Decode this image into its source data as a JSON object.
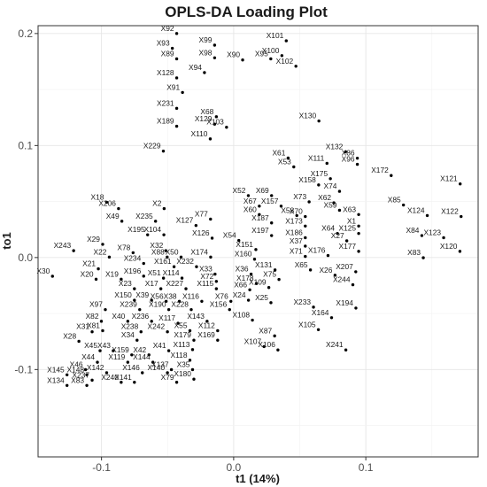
{
  "chart_data": {
    "type": "scatter",
    "title": "OPLS-DA Loading Plot",
    "xlabel": "t1 (14%)",
    "ylabel": "to1",
    "xlim": [
      -0.148,
      0.185
    ],
    "ylim": [
      -0.178,
      0.207
    ],
    "x_ticks": [
      {
        "value": -0.1,
        "label": "-0.1"
      },
      {
        "value": 0.0,
        "label": "0.0"
      },
      {
        "value": 0.1,
        "label": "0.1"
      }
    ],
    "y_ticks": [
      {
        "value": -0.1,
        "label": "-0.1"
      },
      {
        "value": 0.0,
        "label": "0.0"
      },
      {
        "value": 0.1,
        "label": "0.1"
      },
      {
        "value": 0.2,
        "label": "0.2"
      }
    ],
    "grid": true,
    "legend": "none",
    "point_color": "#000000",
    "points": [
      {
        "label": "X101",
        "x": 0.0398,
        "y": 0.1935
      },
      {
        "label": "X100",
        "x": 0.0365,
        "y": 0.1803
      },
      {
        "label": "X92",
        "x": -0.0431,
        "y": 0.2
      },
      {
        "label": "X93",
        "x": -0.0464,
        "y": 0.1868
      },
      {
        "label": "X99",
        "x": -0.0144,
        "y": 0.1896
      },
      {
        "label": "X89",
        "x": -0.0431,
        "y": 0.1774
      },
      {
        "label": "X98",
        "x": -0.0144,
        "y": 0.1783
      },
      {
        "label": "X90",
        "x": 0.0068,
        "y": 0.1764
      },
      {
        "label": "X95",
        "x": 0.0281,
        "y": 0.1774
      },
      {
        "label": "X102",
        "x": 0.0471,
        "y": 0.1708
      },
      {
        "label": "X94",
        "x": -0.0221,
        "y": 0.1651
      },
      {
        "label": "X128",
        "x": -0.0431,
        "y": 0.1604
      },
      {
        "label": "X91",
        "x": -0.0387,
        "y": 0.1474
      },
      {
        "label": "X68",
        "x": -0.0131,
        "y": 0.1257
      },
      {
        "label": "X231",
        "x": -0.0431,
        "y": 0.1332
      },
      {
        "label": "X129",
        "x": -0.0144,
        "y": 0.1191
      },
      {
        "label": "X130",
        "x": 0.0645,
        "y": 0.1219
      },
      {
        "label": "X103",
        "x": -0.0054,
        "y": 0.1163
      },
      {
        "label": "X189",
        "x": -0.0431,
        "y": 0.1172
      },
      {
        "label": "X110",
        "x": -0.0177,
        "y": 0.1059
      },
      {
        "label": "X229",
        "x": -0.0532,
        "y": 0.095
      },
      {
        "label": "X61",
        "x": 0.0412,
        "y": 0.0889
      },
      {
        "label": "X132",
        "x": 0.0847,
        "y": 0.0944
      },
      {
        "label": "X86",
        "x": 0.0936,
        "y": 0.0887
      },
      {
        "label": "X53",
        "x": 0.0455,
        "y": 0.0809
      },
      {
        "label": "X111",
        "x": 0.0706,
        "y": 0.0841
      },
      {
        "label": "X96",
        "x": 0.0936,
        "y": 0.0832
      },
      {
        "label": "X175",
        "x": 0.0732,
        "y": 0.0704
      },
      {
        "label": "X172",
        "x": 0.1192,
        "y": 0.0732
      },
      {
        "label": "X121",
        "x": 0.1714,
        "y": 0.0657
      },
      {
        "label": "X158",
        "x": 0.0643,
        "y": 0.0648
      },
      {
        "label": "X74",
        "x": 0.0801,
        "y": 0.0591
      },
      {
        "label": "X52",
        "x": 0.0111,
        "y": 0.0553
      },
      {
        "label": "X69",
        "x": 0.0287,
        "y": 0.0553
      },
      {
        "label": "X73",
        "x": 0.0571,
        "y": 0.0497
      },
      {
        "label": "X62",
        "x": 0.0758,
        "y": 0.0488
      },
      {
        "label": "X67",
        "x": 0.0194,
        "y": 0.0459
      },
      {
        "label": "X157",
        "x": 0.0359,
        "y": 0.0459
      },
      {
        "label": "X59",
        "x": 0.0801,
        "y": 0.0422
      },
      {
        "label": "X85",
        "x": 0.1285,
        "y": 0.0469
      },
      {
        "label": "X60",
        "x": 0.0194,
        "y": 0.0384
      },
      {
        "label": "X58",
        "x": 0.0478,
        "y": 0.0375
      },
      {
        "label": "X70",
        "x": 0.0542,
        "y": 0.0366
      },
      {
        "label": "X63",
        "x": 0.0946,
        "y": 0.0384
      },
      {
        "label": "X124",
        "x": 0.1465,
        "y": 0.0375
      },
      {
        "label": "X122",
        "x": 0.1721,
        "y": 0.0366
      },
      {
        "label": "X187",
        "x": 0.0287,
        "y": 0.0309
      },
      {
        "label": "X173",
        "x": 0.0542,
        "y": 0.0281
      },
      {
        "label": "X1",
        "x": 0.0946,
        "y": 0.0281
      },
      {
        "label": "X64",
        "x": 0.0785,
        "y": 0.0215
      },
      {
        "label": "X125",
        "x": 0.0946,
        "y": 0.0215
      },
      {
        "label": "X84",
        "x": 0.1424,
        "y": 0.0196
      },
      {
        "label": "X123",
        "x": 0.1589,
        "y": 0.0177
      },
      {
        "label": "X197",
        "x": 0.0287,
        "y": 0.0196
      },
      {
        "label": "X186",
        "x": 0.0542,
        "y": 0.0177
      },
      {
        "label": "X27",
        "x": 0.0856,
        "y": 0.0149
      },
      {
        "label": "X37",
        "x": 0.0542,
        "y": 0.0102
      },
      {
        "label": "X177",
        "x": 0.0946,
        "y": 0.0055
      },
      {
        "label": "X120",
        "x": 0.1712,
        "y": 0.0055
      },
      {
        "label": "X83",
        "x": 0.1435,
        "y": -0.0002
      },
      {
        "label": "X71",
        "x": 0.0542,
        "y": 0.001
      },
      {
        "label": "X176",
        "x": 0.0714,
        "y": 0.0018
      },
      {
        "label": "X65",
        "x": 0.0581,
        "y": -0.0111
      },
      {
        "label": "X131",
        "x": 0.0313,
        "y": -0.0111
      },
      {
        "label": "X75",
        "x": 0.0343,
        "y": -0.0196
      },
      {
        "label": "X26",
        "x": 0.0767,
        "y": -0.0158
      },
      {
        "label": "X207",
        "x": 0.0924,
        "y": -0.0127
      },
      {
        "label": "X244",
        "x": 0.0902,
        "y": -0.0243
      },
      {
        "label": "X109",
        "x": 0.0266,
        "y": -0.0268
      },
      {
        "label": "X25",
        "x": 0.0282,
        "y": -0.0403
      },
      {
        "label": "X233",
        "x": 0.0604,
        "y": -0.0443
      },
      {
        "label": "X194",
        "x": 0.0925,
        "y": -0.0451
      },
      {
        "label": "X164",
        "x": 0.0741,
        "y": -0.0537
      },
      {
        "label": "X105",
        "x": 0.0641,
        "y": -0.0644
      },
      {
        "label": "X87",
        "x": 0.031,
        "y": -0.07
      },
      {
        "label": "X107",
        "x": 0.023,
        "y": -0.0795
      },
      {
        "label": "X106",
        "x": 0.0335,
        "y": -0.0825
      },
      {
        "label": "X241",
        "x": 0.0849,
        "y": -0.0825
      },
      {
        "label": "X18",
        "x": -0.0961,
        "y": 0.0493
      },
      {
        "label": "X206",
        "x": -0.0871,
        "y": 0.0437
      },
      {
        "label": "X2",
        "x": -0.0526,
        "y": 0.0437
      },
      {
        "label": "X49",
        "x": -0.0846,
        "y": 0.0324
      },
      {
        "label": "X235",
        "x": -0.0591,
        "y": 0.0324
      },
      {
        "label": "X127",
        "x": -0.0285,
        "y": 0.0286
      },
      {
        "label": "X77",
        "x": -0.0175,
        "y": 0.0343
      },
      {
        "label": "X195",
        "x": -0.0651,
        "y": 0.0203
      },
      {
        "label": "X104",
        "x": -0.0528,
        "y": 0.0203
      },
      {
        "label": "X126",
        "x": -0.0163,
        "y": 0.0173
      },
      {
        "label": "X54",
        "x": 0.0039,
        "y": 0.0152
      },
      {
        "label": "X29",
        "x": -0.0991,
        "y": 0.0118
      },
      {
        "label": "X243",
        "x": -0.1211,
        "y": 0.0061
      },
      {
        "label": "X32",
        "x": -0.0513,
        "y": 0.0061
      },
      {
        "label": "X78",
        "x": -0.0761,
        "y": 0.0043
      },
      {
        "label": "X151",
        "x": 0.0168,
        "y": 0.0071
      },
      {
        "label": "X22",
        "x": -0.0941,
        "y": 0.0004
      },
      {
        "label": "X88",
        "x": -0.0503,
        "y": 0.0004
      },
      {
        "label": "X50",
        "x": -0.0398,
        "y": 0.0004
      },
      {
        "label": "X174",
        "x": -0.0174,
        "y": 0.0004
      },
      {
        "label": "X160",
        "x": 0.0158,
        "y": -0.0015
      },
      {
        "label": "X234",
        "x": -0.0681,
        "y": -0.0053
      },
      {
        "label": "X161",
        "x": -0.0451,
        "y": -0.0082
      },
      {
        "label": "X232",
        "x": -0.0281,
        "y": -0.0082
      },
      {
        "label": "X33",
        "x": -0.0141,
        "y": -0.0148
      },
      {
        "label": "X36",
        "x": 0.0132,
        "y": -0.0148
      },
      {
        "label": "X21",
        "x": -0.1024,
        "y": -0.0101
      },
      {
        "label": "X196",
        "x": -0.0681,
        "y": -0.0166
      },
      {
        "label": "X51",
        "x": -0.0531,
        "y": -0.0184
      },
      {
        "label": "X114",
        "x": -0.0391,
        "y": -0.0184
      },
      {
        "label": "X72",
        "x": -0.0131,
        "y": -0.0213
      },
      {
        "label": "X178",
        "x": 0.0172,
        "y": -0.0232
      },
      {
        "label": "X20",
        "x": -0.1041,
        "y": -0.0194
      },
      {
        "label": "X19",
        "x": -0.0851,
        "y": -0.0194
      },
      {
        "label": "X17",
        "x": -0.0551,
        "y": -0.0279
      },
      {
        "label": "X227",
        "x": -0.0361,
        "y": -0.0279
      },
      {
        "label": "X115",
        "x": -0.0131,
        "y": -0.0279
      },
      {
        "label": "X66",
        "x": 0.0122,
        "y": -0.0288
      },
      {
        "label": "X30",
        "x": -0.1371,
        "y": -0.0167
      },
      {
        "label": "X23",
        "x": -0.0751,
        "y": -0.0279
      },
      {
        "label": "X150",
        "x": -0.0751,
        "y": -0.0381
      },
      {
        "label": "X39",
        "x": -0.0621,
        "y": -0.0381
      },
      {
        "label": "X56",
        "x": -0.0511,
        "y": -0.0391
      },
      {
        "label": "X38",
        "x": -0.0411,
        "y": -0.0391
      },
      {
        "label": "X116",
        "x": -0.0241,
        "y": -0.0391
      },
      {
        "label": "X76",
        "x": -0.0021,
        "y": -0.0391
      },
      {
        "label": "X24",
        "x": 0.0112,
        "y": -0.0381
      },
      {
        "label": "X97",
        "x": -0.0971,
        "y": -0.0465
      },
      {
        "label": "X239",
        "x": -0.0711,
        "y": -0.0465
      },
      {
        "label": "X190",
        "x": -0.0491,
        "y": -0.0465
      },
      {
        "label": "X228",
        "x": -0.0321,
        "y": -0.0465
      },
      {
        "label": "X156",
        "x": -0.0031,
        "y": -0.0465
      },
      {
        "label": "X82",
        "x": -0.1001,
        "y": -0.0569
      },
      {
        "label": "X40",
        "x": -0.0801,
        "y": -0.0569
      },
      {
        "label": "X236",
        "x": -0.0621,
        "y": -0.0569
      },
      {
        "label": "X117",
        "x": -0.0421,
        "y": -0.0587
      },
      {
        "label": "X143",
        "x": -0.0201,
        "y": -0.0569
      },
      {
        "label": "X108",
        "x": 0.0142,
        "y": -0.0559
      },
      {
        "label": "X81",
        "x": -0.0991,
        "y": -0.0653
      },
      {
        "label": "X31",
        "x": -0.1071,
        "y": -0.0663
      },
      {
        "label": "X238",
        "x": -0.0701,
        "y": -0.0663
      },
      {
        "label": "X242",
        "x": -0.0501,
        "y": -0.0663
      },
      {
        "label": "X55",
        "x": -0.0331,
        "y": -0.0653
      },
      {
        "label": "X112",
        "x": -0.0121,
        "y": -0.0653
      },
      {
        "label": "X28",
        "x": -0.1171,
        "y": -0.0748
      },
      {
        "label": "X34",
        "x": -0.0731,
        "y": -0.0738
      },
      {
        "label": "X179",
        "x": -0.0301,
        "y": -0.0738
      },
      {
        "label": "X169",
        "x": -0.0121,
        "y": -0.0738
      },
      {
        "label": "X43",
        "x": -0.0911,
        "y": -0.0832
      },
      {
        "label": "X45",
        "x": -0.1011,
        "y": -0.0832
      },
      {
        "label": "X159",
        "x": -0.0771,
        "y": -0.0869
      },
      {
        "label": "X42",
        "x": -0.0641,
        "y": -0.0869
      },
      {
        "label": "X41",
        "x": -0.0491,
        "y": -0.0832
      },
      {
        "label": "X113",
        "x": -0.0311,
        "y": -0.0822
      },
      {
        "label": "X44",
        "x": -0.1031,
        "y": -0.0935
      },
      {
        "label": "X119",
        "x": -0.0801,
        "y": -0.0935
      },
      {
        "label": "X144",
        "x": -0.0611,
        "y": -0.0935
      },
      {
        "label": "X118",
        "x": -0.0331,
        "y": -0.0917
      },
      {
        "label": "X46",
        "x": -0.1121,
        "y": -0.1001
      },
      {
        "label": "X142",
        "x": -0.0961,
        "y": -0.1029
      },
      {
        "label": "X146",
        "x": -0.0691,
        "y": -0.1029
      },
      {
        "label": "X140",
        "x": -0.0501,
        "y": -0.1029
      },
      {
        "label": "X137",
        "x": -0.0471,
        "y": -0.1001
      },
      {
        "label": "X35",
        "x": -0.0311,
        "y": -0.1001
      },
      {
        "label": "X145",
        "x": -0.1261,
        "y": -0.1047
      },
      {
        "label": "X148",
        "x": -0.1111,
        "y": -0.1047
      },
      {
        "label": "X237",
        "x": -0.1071,
        "y": -0.1095
      },
      {
        "label": "X240",
        "x": -0.0851,
        "y": -0.1114
      },
      {
        "label": "X141",
        "x": -0.0751,
        "y": -0.1114
      },
      {
        "label": "X79",
        "x": -0.0431,
        "y": -0.1114
      },
      {
        "label": "X180",
        "x": -0.0301,
        "y": -0.1086
      },
      {
        "label": "X134",
        "x": -0.1261,
        "y": -0.1142
      },
      {
        "label": "X83b",
        "x": -0.1111,
        "y": -0.1142
      }
    ]
  }
}
